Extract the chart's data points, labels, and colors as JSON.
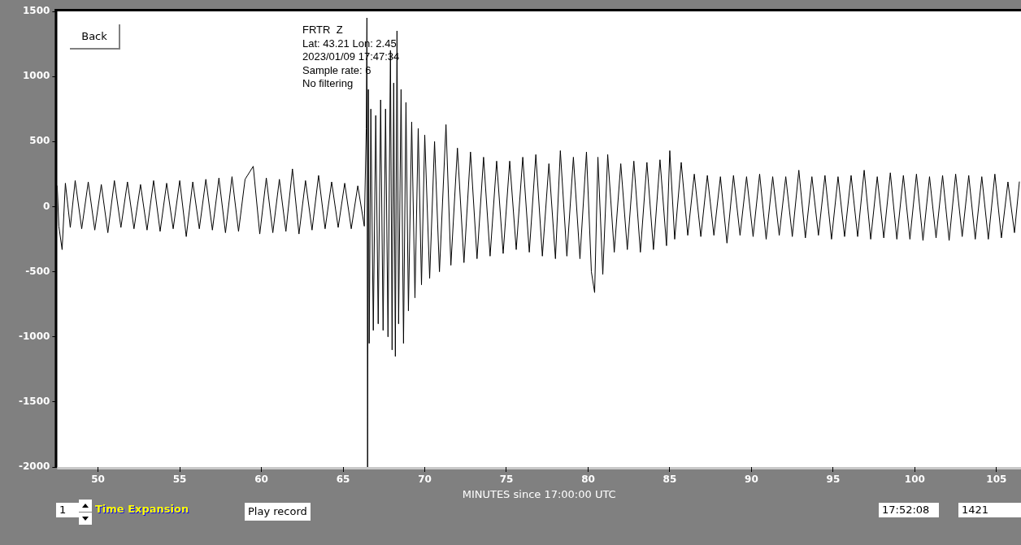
{
  "chart_data": {
    "type": "line",
    "title": "FRTR  Z",
    "xlabel": "MINUTES since 17:00:00 UTC",
    "annotations": [
      "Lat: 43.21 Lon: 2.45",
      "2023/01/09 17:47:34",
      "Sample rate: 6",
      "No filtering",
      "Back",
      "1",
      "Time Expansion",
      "Play record",
      "17:52:08",
      "1421"
    ],
    "xlim": [
      47.5,
      106.5
    ],
    "xticks": [
      50,
      55,
      60,
      65,
      70,
      75,
      80,
      85,
      90,
      95,
      100,
      105
    ],
    "ylim": [
      -2000,
      1500
    ],
    "yticks": [
      -2000,
      -1500,
      -1000,
      -500,
      0,
      500,
      1000,
      1500
    ],
    "x": [
      47.5,
      47.6,
      47.8,
      48.0,
      48.3,
      48.6,
      49.0,
      49.4,
      49.8,
      50.2,
      50.6,
      51.0,
      51.4,
      51.8,
      52.2,
      52.6,
      53.0,
      53.4,
      53.8,
      54.2,
      54.6,
      55.0,
      55.4,
      55.8,
      56.2,
      56.6,
      57.0,
      57.4,
      57.8,
      58.2,
      58.6,
      59.0,
      59.5,
      59.9,
      60.3,
      60.7,
      61.1,
      61.5,
      61.9,
      62.3,
      62.7,
      63.1,
      63.5,
      63.9,
      64.3,
      64.7,
      65.1,
      65.5,
      65.9,
      66.3,
      66.42,
      66.46,
      66.5,
      66.55,
      66.6,
      66.7,
      66.85,
      67.0,
      67.15,
      67.3,
      67.45,
      67.6,
      67.75,
      67.9,
      68.0,
      68.1,
      68.2,
      68.3,
      68.4,
      68.55,
      68.7,
      68.85,
      69.0,
      69.2,
      69.4,
      69.6,
      69.8,
      70.0,
      70.3,
      70.6,
      70.9,
      71.3,
      71.6,
      72.0,
      72.4,
      72.8,
      73.2,
      73.6,
      74.0,
      74.4,
      74.8,
      75.2,
      75.6,
      76.0,
      76.4,
      76.8,
      77.2,
      77.6,
      78.0,
      78.3,
      78.7,
      79.1,
      79.5,
      79.9,
      80.2,
      80.4,
      80.6,
      80.9,
      81.2,
      81.6,
      82.0,
      82.4,
      82.8,
      83.2,
      83.6,
      84.0,
      84.4,
      84.8,
      85.0,
      85.3,
      85.7,
      86.1,
      86.5,
      86.9,
      87.3,
      87.7,
      88.1,
      88.5,
      88.9,
      89.3,
      89.7,
      90.1,
      90.5,
      90.9,
      91.3,
      91.7,
      92.1,
      92.5,
      92.9,
      93.3,
      93.7,
      94.1,
      94.5,
      94.9,
      95.3,
      95.7,
      96.1,
      96.5,
      96.9,
      97.3,
      97.7,
      98.1,
      98.5,
      98.9,
      99.3,
      99.7,
      100.1,
      100.5,
      100.9,
      101.3,
      101.7,
      102.1,
      102.5,
      102.9,
      103.3,
      103.7,
      104.1,
      104.5,
      104.9,
      105.3,
      105.7,
      106.1,
      106.4
    ],
    "series": [
      {
        "color": "#000000",
        "values": [
          160,
          -150,
          -330,
          180,
          -160,
          200,
          -170,
          190,
          -180,
          170,
          -200,
          200,
          -160,
          190,
          -170,
          170,
          -180,
          200,
          -190,
          180,
          -170,
          200,
          -230,
          190,
          -170,
          210,
          -180,
          220,
          -200,
          230,
          -190,
          210,
          310,
          -210,
          220,
          -200,
          210,
          -190,
          290,
          -210,
          200,
          -180,
          240,
          -170,
          190,
          -160,
          180,
          -170,
          160,
          -150,
          600,
          1450,
          -2000,
          900,
          -1050,
          750,
          -950,
          700,
          -900,
          820,
          -950,
          750,
          -1000,
          1200,
          -1100,
          950,
          -1150,
          1350,
          -900,
          900,
          -1050,
          800,
          -800,
          650,
          -700,
          600,
          -600,
          550,
          -550,
          500,
          -500,
          630,
          -450,
          450,
          -430,
          420,
          -400,
          380,
          -380,
          350,
          -360,
          350,
          -330,
          380,
          -350,
          400,
          -380,
          330,
          -400,
          430,
          -380,
          380,
          -400,
          420,
          -500,
          -660,
          380,
          -520,
          400,
          -350,
          330,
          -330,
          350,
          -350,
          340,
          -330,
          360,
          -300,
          430,
          -250,
          340,
          -220,
          250,
          -230,
          240,
          -220,
          230,
          -280,
          240,
          -220,
          230,
          -230,
          250,
          -250,
          230,
          -220,
          230,
          -230,
          280,
          -240,
          230,
          -220,
          240,
          -250,
          230,
          -230,
          240,
          -230,
          280,
          -250,
          230,
          -240,
          260,
          -250,
          240,
          -250,
          250,
          -260,
          230,
          -240,
          240,
          -260,
          250,
          -230,
          240,
          -250,
          230,
          -250,
          250,
          -240,
          190,
          -200,
          190
        ]
      }
    ]
  }
}
